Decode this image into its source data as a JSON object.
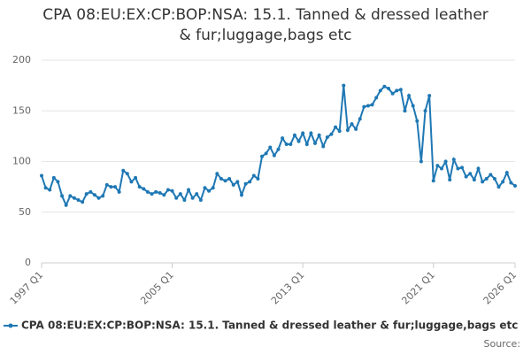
{
  "chart_data": {
    "type": "line",
    "title": "CPA 08:EU:EX:CP:BOP:NSA: 15.1. Tanned & dressed leather & fur;luggage,bags etc",
    "source": "Source:",
    "categories": [
      "1997 Q1",
      null,
      null,
      null,
      null,
      null,
      null,
      null,
      null,
      null,
      null,
      null,
      null,
      null,
      null,
      null,
      null,
      null,
      null,
      null,
      null,
      null,
      null,
      null,
      null,
      null,
      null,
      null,
      null,
      null,
      null,
      null,
      "2005 Q1",
      null,
      null,
      null,
      null,
      null,
      null,
      null,
      null,
      null,
      null,
      null,
      null,
      null,
      null,
      null,
      null,
      null,
      null,
      null,
      null,
      null,
      null,
      null,
      null,
      null,
      null,
      null,
      null,
      null,
      null,
      null,
      "2013 Q1",
      null,
      null,
      null,
      null,
      null,
      null,
      null,
      null,
      null,
      null,
      null,
      null,
      null,
      null,
      null,
      null,
      null,
      null,
      null,
      null,
      null,
      null,
      null,
      null,
      null,
      null,
      null,
      null,
      null,
      null,
      null,
      "2021 Q1",
      null,
      null,
      null,
      null,
      null,
      null,
      null,
      null,
      null,
      null,
      null,
      null,
      null,
      null,
      null,
      null,
      null,
      null,
      null,
      "2026 Q1"
    ],
    "series": [
      {
        "name": "CPA 08:EU:EX:CP:BOP:NSA: 15.1. Tanned & dressed leather & fur;luggage,bags etc",
        "color": "#1f78b4",
        "values": [
          86,
          74,
          72,
          84,
          80,
          66,
          57,
          66,
          64,
          62,
          60,
          68,
          70,
          67,
          64,
          66,
          77,
          75,
          75,
          70,
          91,
          88,
          80,
          84,
          75,
          73,
          70,
          68,
          70,
          69,
          67,
          72,
          71,
          64,
          68,
          62,
          72,
          64,
          68,
          62,
          74,
          71,
          74,
          88,
          83,
          81,
          83,
          77,
          80,
          67,
          78,
          80,
          86,
          83,
          105,
          108,
          114,
          106,
          112,
          123,
          117,
          117,
          126,
          120,
          128,
          117,
          128,
          118,
          126,
          115,
          124,
          127,
          134,
          130,
          175,
          131,
          137,
          132,
          142,
          154,
          155,
          156,
          163,
          170,
          174,
          172,
          167,
          170,
          171,
          150,
          165,
          155,
          140,
          100,
          150,
          165,
          81,
          96,
          93,
          100,
          82,
          102,
          93,
          94,
          85,
          88,
          82,
          93,
          80,
          83,
          87,
          83,
          75,
          80,
          89,
          79,
          76
        ]
      }
    ],
    "ylim": [
      0,
      200
    ],
    "yticks": [
      0,
      50,
      100,
      150,
      200
    ],
    "grid": true
  }
}
